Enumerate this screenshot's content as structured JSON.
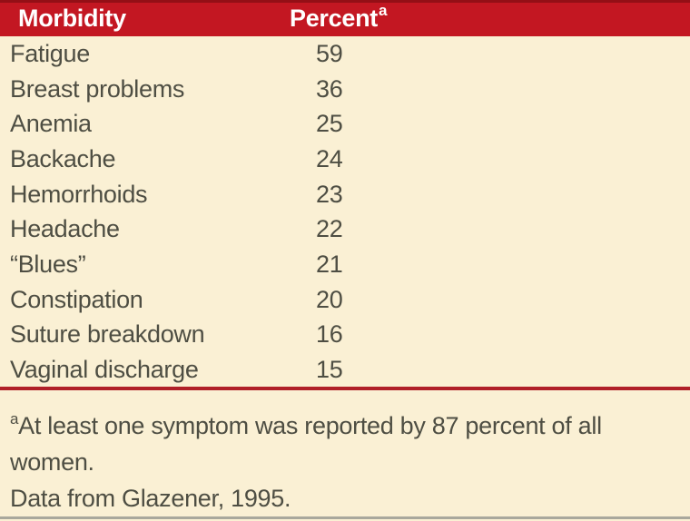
{
  "table": {
    "columns": [
      {
        "label": "Morbidity"
      },
      {
        "label": "Percent",
        "superscript": "a"
      }
    ],
    "rows": [
      {
        "morbidity": "Fatigue",
        "percent": "59"
      },
      {
        "morbidity": "Breast problems",
        "percent": "36"
      },
      {
        "morbidity": "Anemia",
        "percent": "25"
      },
      {
        "morbidity": "Backache",
        "percent": "24"
      },
      {
        "morbidity": "Hemorrhoids",
        "percent": "23"
      },
      {
        "morbidity": "Headache",
        "percent": "22"
      },
      {
        "morbidity": "“Blues”",
        "percent": "21"
      },
      {
        "morbidity": "Constipation",
        "percent": "20"
      },
      {
        "morbidity": "Suture breakdown",
        "percent": "16"
      },
      {
        "morbidity": "Vaginal discharge",
        "percent": "15"
      }
    ]
  },
  "footnotes": {
    "note": {
      "superscript": "a",
      "line1": "At least one symptom was reported by 87 percent of all",
      "line2": "women."
    },
    "source": "Data from Glazener, 1995."
  },
  "colors": {
    "header_red": "#c31722",
    "rule_red": "#b02028",
    "background_cream": "#faf0d4",
    "text": "#4e4e43",
    "header_text": "#ffffff",
    "bottom_line": "#a9a89c"
  },
  "chart_data": {
    "type": "table",
    "title": "",
    "columns": [
      "Morbidity",
      "Percent"
    ],
    "rows": [
      [
        "Fatigue",
        59
      ],
      [
        "Breast problems",
        36
      ],
      [
        "Anemia",
        25
      ],
      [
        "Backache",
        24
      ],
      [
        "Hemorrhoids",
        23
      ],
      [
        "Headache",
        22
      ],
      [
        "“Blues”",
        21
      ],
      [
        "Constipation",
        20
      ],
      [
        "Suture breakdown",
        16
      ],
      [
        "Vaginal discharge",
        15
      ]
    ],
    "footnote": "At least one symptom was reported by 87 percent of all women.",
    "source": "Data from Glazener, 1995."
  }
}
